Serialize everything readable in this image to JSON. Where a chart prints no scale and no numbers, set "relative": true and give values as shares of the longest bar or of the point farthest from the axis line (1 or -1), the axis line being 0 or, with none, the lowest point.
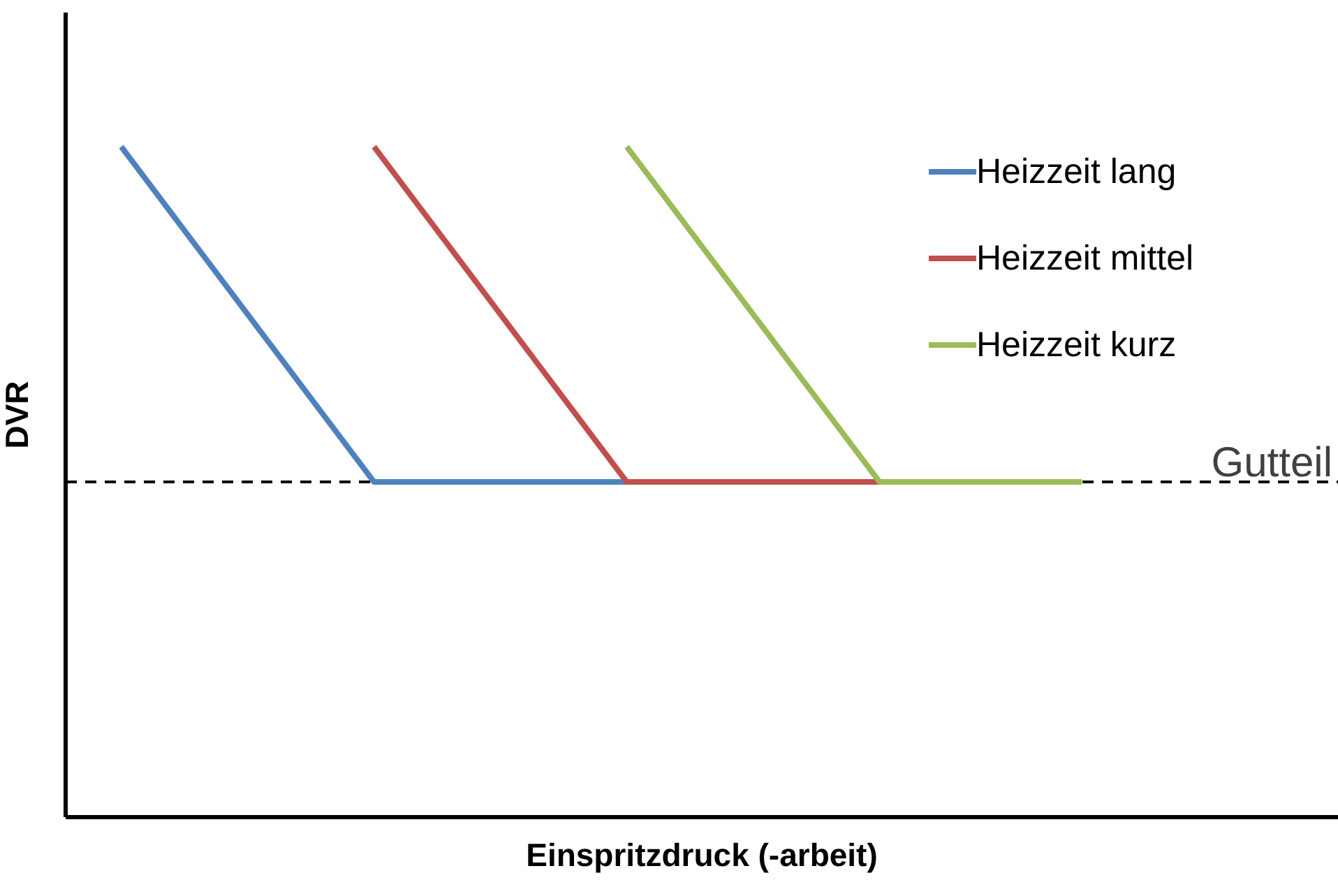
{
  "chart_data": {
    "type": "line",
    "relative": true,
    "xlabel": "Einspritzdruck (-arbeit)",
    "ylabel": "DVR",
    "categories": [
      null,
      null,
      null,
      null,
      null,
      null,
      null,
      null,
      null,
      null,
      null,
      null,
      null,
      null,
      null,
      null,
      null,
      null,
      null,
      null
    ],
    "series": [
      {
        "name": "Heizzeit lang",
        "color": "#4f81bd",
        "values": [
          1,
          null,
          null,
          null,
          null,
          0.5,
          null,
          null,
          null,
          null,
          0.5,
          null,
          null,
          null,
          null,
          null,
          null,
          null,
          null,
          null
        ]
      },
      {
        "name": "Heizzeit mittel",
        "color": "#c0504d",
        "values": [
          null,
          null,
          null,
          null,
          null,
          1,
          null,
          null,
          null,
          null,
          0.5,
          null,
          null,
          null,
          null,
          0.5,
          null,
          null,
          null,
          null
        ]
      },
      {
        "name": "Heizzeit kurz",
        "color": "#9bbb59",
        "values": [
          null,
          null,
          null,
          null,
          null,
          null,
          null,
          null,
          null,
          null,
          1,
          null,
          null,
          null,
          null,
          0.5,
          null,
          null,
          null,
          0.5
        ]
      }
    ],
    "ref_lines": [
      {
        "axis": "y",
        "value": 0.5,
        "label": "Gutteil",
        "color": "#000000",
        "line_style": "dashed"
      }
    ],
    "legend": "top right",
    "grid": false,
    "marker": "none",
    "line_style": "solid"
  }
}
